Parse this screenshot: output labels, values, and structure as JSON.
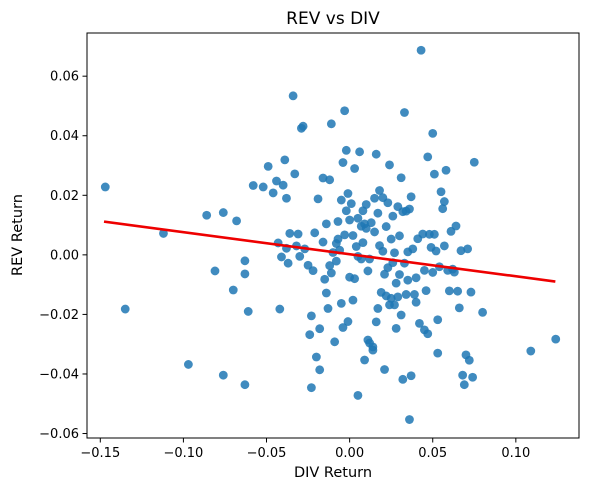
{
  "chart_data": {
    "type": "scatter",
    "title": "REV vs DIV",
    "xlabel": "DIV Return",
    "ylabel": "REV Return",
    "xlim": [
      -0.158,
      0.138
    ],
    "ylim": [
      -0.0615,
      0.0745
    ],
    "xticks": [
      -0.15,
      -0.1,
      -0.05,
      0.0,
      0.05,
      0.1
    ],
    "xtick_labels": [
      "−0.15",
      "−0.10",
      "−0.05",
      "0.00",
      "0.05",
      "0.10"
    ],
    "yticks": [
      -0.06,
      -0.04,
      -0.02,
      0.0,
      0.02,
      0.04,
      0.06
    ],
    "ytick_labels": [
      "−0.06",
      "−0.04",
      "−0.02",
      "0.00",
      "0.02",
      "0.04",
      "0.06"
    ],
    "grid": false,
    "colors": {
      "points": "#1f77b4",
      "regression": "#ee0000"
    },
    "regression_line": {
      "x": [
        -0.147,
        0.123
      ],
      "y": [
        0.0111,
        -0.0089
      ]
    },
    "points": [
      {
        "x": -0.147,
        "y": 0.0228
      },
      {
        "x": -0.135,
        "y": -0.0182
      },
      {
        "x": -0.112,
        "y": 0.0072
      },
      {
        "x": -0.097,
        "y": -0.0368
      },
      {
        "x": -0.086,
        "y": 0.0133
      },
      {
        "x": -0.081,
        "y": -0.0054
      },
      {
        "x": -0.076,
        "y": 0.0142
      },
      {
        "x": -0.076,
        "y": -0.0404
      },
      {
        "x": -0.07,
        "y": -0.0118
      },
      {
        "x": -0.068,
        "y": 0.0114
      },
      {
        "x": -0.063,
        "y": -0.002
      },
      {
        "x": -0.063,
        "y": -0.0064
      },
      {
        "x": -0.063,
        "y": -0.0436
      },
      {
        "x": -0.061,
        "y": -0.019
      },
      {
        "x": -0.058,
        "y": 0.0233
      },
      {
        "x": -0.052,
        "y": 0.0228
      },
      {
        "x": -0.049,
        "y": 0.0297
      },
      {
        "x": -0.046,
        "y": 0.0208
      },
      {
        "x": -0.044,
        "y": 0.0248
      },
      {
        "x": -0.043,
        "y": 0.004
      },
      {
        "x": -0.042,
        "y": -0.0182
      },
      {
        "x": -0.041,
        "y": -0.0007
      },
      {
        "x": -0.04,
        "y": 0.0234
      },
      {
        "x": -0.039,
        "y": 0.0319
      },
      {
        "x": -0.038,
        "y": 0.019
      },
      {
        "x": -0.038,
        "y": 0.0022
      },
      {
        "x": -0.037,
        "y": -0.0028
      },
      {
        "x": -0.036,
        "y": 0.0072
      },
      {
        "x": -0.034,
        "y": 0.0534
      },
      {
        "x": -0.033,
        "y": 0.0272
      },
      {
        "x": -0.032,
        "y": 0.003
      },
      {
        "x": -0.031,
        "y": 0.007
      },
      {
        "x": -0.03,
        "y": -0.0005
      },
      {
        "x": -0.029,
        "y": 0.0425
      },
      {
        "x": -0.028,
        "y": 0.0432
      },
      {
        "x": -0.027,
        "y": 0.002
      },
      {
        "x": -0.025,
        "y": -0.0035
      },
      {
        "x": -0.024,
        "y": -0.0268
      },
      {
        "x": -0.023,
        "y": -0.0446
      },
      {
        "x": -0.023,
        "y": -0.0205
      },
      {
        "x": -0.022,
        "y": -0.0053
      },
      {
        "x": -0.021,
        "y": 0.0074
      },
      {
        "x": -0.02,
        "y": -0.0343
      },
      {
        "x": -0.019,
        "y": 0.0188
      },
      {
        "x": -0.018,
        "y": -0.0248
      },
      {
        "x": -0.018,
        "y": -0.0386
      },
      {
        "x": -0.016,
        "y": 0.0043
      },
      {
        "x": -0.016,
        "y": 0.0258
      },
      {
        "x": -0.015,
        "y": -0.0082
      },
      {
        "x": -0.014,
        "y": -0.0128
      },
      {
        "x": -0.014,
        "y": 0.0104
      },
      {
        "x": -0.013,
        "y": -0.018
      },
      {
        "x": -0.012,
        "y": 0.0252
      },
      {
        "x": -0.012,
        "y": -0.0036
      },
      {
        "x": -0.011,
        "y": -0.0061
      },
      {
        "x": -0.011,
        "y": 0.044
      },
      {
        "x": -0.01,
        "y": 0.0008
      },
      {
        "x": -0.009,
        "y": -0.0292
      },
      {
        "x": -0.008,
        "y": -0.0021
      },
      {
        "x": -0.008,
        "y": 0.0038
      },
      {
        "x": -0.007,
        "y": 0.0053
      },
      {
        "x": -0.007,
        "y": 0.0112
      },
      {
        "x": -0.006,
        "y": 0.0016
      },
      {
        "x": -0.005,
        "y": -0.0163
      },
      {
        "x": -0.005,
        "y": 0.0184
      },
      {
        "x": -0.004,
        "y": -0.0244
      },
      {
        "x": -0.004,
        "y": 0.031
      },
      {
        "x": -0.003,
        "y": 0.0067
      },
      {
        "x": -0.003,
        "y": 0.0484
      },
      {
        "x": -0.002,
        "y": 0.0351
      },
      {
        "x": -0.002,
        "y": 0.0148
      },
      {
        "x": -0.001,
        "y": -0.0224
      },
      {
        "x": -0.001,
        "y": 0.0206
      },
      {
        "x": 0.0,
        "y": -0.0075
      },
      {
        "x": 0.0,
        "y": 0.0117
      },
      {
        "x": 0.001,
        "y": 0.0172
      },
      {
        "x": 0.002,
        "y": 0.0065
      },
      {
        "x": 0.002,
        "y": -0.0152
      },
      {
        "x": 0.003,
        "y": -0.008
      },
      {
        "x": 0.003,
        "y": 0.029
      },
      {
        "x": 0.004,
        "y": 0.0028
      },
      {
        "x": 0.005,
        "y": -0.0472
      },
      {
        "x": 0.005,
        "y": 0.0123
      },
      {
        "x": 0.005,
        "y": -0.0005
      },
      {
        "x": 0.006,
        "y": 0.0346
      },
      {
        "x": 0.007,
        "y": 0.0096
      },
      {
        "x": 0.007,
        "y": -0.0014
      },
      {
        "x": 0.008,
        "y": 0.0041
      },
      {
        "x": 0.008,
        "y": 0.0148
      },
      {
        "x": 0.009,
        "y": 0.0104
      },
      {
        "x": 0.009,
        "y": -0.0353
      },
      {
        "x": 0.01,
        "y": 0.0169
      },
      {
        "x": 0.01,
        "y": 0.0089
      },
      {
        "x": 0.011,
        "y": -0.0054
      },
      {
        "x": 0.011,
        "y": -0.0286
      },
      {
        "x": 0.012,
        "y": -0.0296
      },
      {
        "x": 0.012,
        "y": -0.0014
      },
      {
        "x": 0.013,
        "y": 0.0108
      },
      {
        "x": 0.014,
        "y": -0.0309
      },
      {
        "x": 0.014,
        "y": -0.032
      },
      {
        "x": 0.015,
        "y": 0.019
      },
      {
        "x": 0.015,
        "y": 0.0077
      },
      {
        "x": 0.016,
        "y": 0.0338
      },
      {
        "x": 0.016,
        "y": -0.0225
      },
      {
        "x": 0.017,
        "y": -0.018
      },
      {
        "x": 0.017,
        "y": 0.014
      },
      {
        "x": 0.018,
        "y": 0.0216
      },
      {
        "x": 0.018,
        "y": 0.0031
      },
      {
        "x": 0.019,
        "y": -0.0126
      },
      {
        "x": 0.02,
        "y": 0.0012
      },
      {
        "x": 0.02,
        "y": 0.0192
      },
      {
        "x": 0.021,
        "y": -0.0065
      },
      {
        "x": 0.021,
        "y": -0.0385
      },
      {
        "x": 0.022,
        "y": 0.0095
      },
      {
        "x": 0.022,
        "y": -0.0138
      },
      {
        "x": 0.023,
        "y": 0.0175
      },
      {
        "x": 0.023,
        "y": -0.0043
      },
      {
        "x": 0.024,
        "y": 0.0302
      },
      {
        "x": 0.024,
        "y": -0.0168
      },
      {
        "x": 0.025,
        "y": 0.0053
      },
      {
        "x": 0.025,
        "y": -0.0146
      },
      {
        "x": 0.026,
        "y": 0.013
      },
      {
        "x": 0.026,
        "y": -0.0026
      },
      {
        "x": 0.027,
        "y": 0.0007
      },
      {
        "x": 0.027,
        "y": -0.0168
      },
      {
        "x": 0.028,
        "y": -0.0247
      },
      {
        "x": 0.028,
        "y": -0.0095
      },
      {
        "x": 0.029,
        "y": -0.0141
      },
      {
        "x": 0.029,
        "y": 0.0162
      },
      {
        "x": 0.03,
        "y": 0.0064
      },
      {
        "x": 0.03,
        "y": -0.0066
      },
      {
        "x": 0.031,
        "y": 0.0259
      },
      {
        "x": 0.031,
        "y": -0.0202
      },
      {
        "x": 0.032,
        "y": -0.0418
      },
      {
        "x": 0.032,
        "y": 0.0145
      },
      {
        "x": 0.033,
        "y": -0.0028
      },
      {
        "x": 0.033,
        "y": 0.0478
      },
      {
        "x": 0.034,
        "y": 0.0147
      },
      {
        "x": 0.034,
        "y": -0.0133
      },
      {
        "x": 0.035,
        "y": -0.0085
      },
      {
        "x": 0.035,
        "y": 0.001
      },
      {
        "x": 0.036,
        "y": -0.0553
      },
      {
        "x": 0.036,
        "y": 0.0154
      },
      {
        "x": 0.037,
        "y": 0.0195
      },
      {
        "x": 0.037,
        "y": -0.0406
      },
      {
        "x": 0.038,
        "y": 0.002
      },
      {
        "x": 0.039,
        "y": -0.0133
      },
      {
        "x": 0.04,
        "y": -0.0077
      },
      {
        "x": 0.04,
        "y": -0.0159
      },
      {
        "x": 0.041,
        "y": 0.0054
      },
      {
        "x": 0.042,
        "y": -0.023
      },
      {
        "x": 0.043,
        "y": 0.0687
      },
      {
        "x": 0.044,
        "y": 0.007
      },
      {
        "x": 0.045,
        "y": -0.0252
      },
      {
        "x": 0.045,
        "y": -0.0052
      },
      {
        "x": 0.046,
        "y": -0.012
      },
      {
        "x": 0.047,
        "y": 0.0329
      },
      {
        "x": 0.047,
        "y": -0.0265
      },
      {
        "x": 0.048,
        "y": 0.0069
      },
      {
        "x": 0.049,
        "y": 0.0025
      },
      {
        "x": 0.05,
        "y": -0.0059
      },
      {
        "x": 0.05,
        "y": 0.0408
      },
      {
        "x": 0.051,
        "y": 0.0271
      },
      {
        "x": 0.051,
        "y": 0.0069
      },
      {
        "x": 0.052,
        "y": 0.0013
      },
      {
        "x": 0.053,
        "y": -0.0218
      },
      {
        "x": 0.053,
        "y": -0.033
      },
      {
        "x": 0.054,
        "y": -0.004
      },
      {
        "x": 0.055,
        "y": 0.0212
      },
      {
        "x": 0.056,
        "y": 0.0155
      },
      {
        "x": 0.057,
        "y": 0.0179
      },
      {
        "x": 0.057,
        "y": 0.003
      },
      {
        "x": 0.058,
        "y": 0.0284
      },
      {
        "x": 0.059,
        "y": -0.0052
      },
      {
        "x": 0.06,
        "y": -0.0121
      },
      {
        "x": 0.061,
        "y": 0.0079
      },
      {
        "x": 0.062,
        "y": -0.0048
      },
      {
        "x": 0.063,
        "y": -0.0058
      },
      {
        "x": 0.064,
        "y": 0.0097
      },
      {
        "x": 0.065,
        "y": -0.0122
      },
      {
        "x": 0.066,
        "y": -0.0178
      },
      {
        "x": 0.067,
        "y": 0.0014
      },
      {
        "x": 0.068,
        "y": -0.0404
      },
      {
        "x": 0.069,
        "y": -0.0436
      },
      {
        "x": 0.07,
        "y": -0.0336
      },
      {
        "x": 0.071,
        "y": 0.002
      },
      {
        "x": 0.072,
        "y": -0.0354
      },
      {
        "x": 0.073,
        "y": -0.0125
      },
      {
        "x": 0.074,
        "y": -0.0411
      },
      {
        "x": 0.075,
        "y": 0.0311
      },
      {
        "x": 0.08,
        "y": -0.0193
      },
      {
        "x": 0.109,
        "y": -0.0323
      },
      {
        "x": 0.124,
        "y": -0.0283
      }
    ]
  }
}
